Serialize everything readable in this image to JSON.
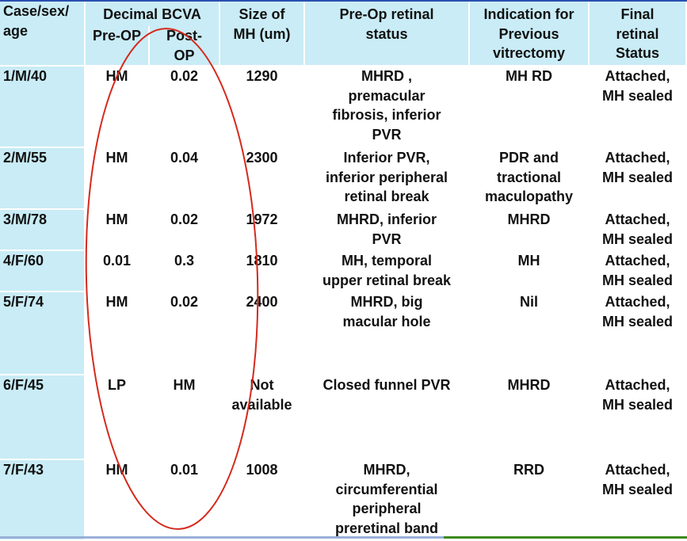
{
  "headers": {
    "case": [
      "Case/sex/",
      "age"
    ],
    "bcva_group": "Decimal BCVA",
    "pre_op": "Pre-OP",
    "post_op": [
      "Post-",
      "OP"
    ],
    "size": [
      "Size of",
      "MH (um)"
    ],
    "preop_status": [
      "Pre-Op retinal",
      "status"
    ],
    "indication": [
      "Indication for",
      "Previous",
      "vitrectomy"
    ],
    "final": [
      "Final",
      "retinal",
      "Status"
    ]
  },
  "rows": [
    {
      "case": "1/M/40",
      "pre": "HM",
      "post": "0.02",
      "size": [
        "1290"
      ],
      "status": [
        "MHRD ,",
        "premacular",
        "fibrosis, inferior",
        "PVR"
      ],
      "indication": [
        "MH RD"
      ],
      "final": [
        "Attached,",
        "MH sealed"
      ]
    },
    {
      "case": "2/M/55",
      "pre": "HM",
      "post": "0.04",
      "size": [
        "2300"
      ],
      "status": [
        "Inferior PVR,",
        "inferior peripheral",
        "retinal break"
      ],
      "indication": [
        "PDR and",
        "tractional",
        "maculopathy"
      ],
      "final": [
        "Attached,",
        "MH sealed"
      ]
    },
    {
      "case": "3/M/78",
      "pre": "HM",
      "post": "0.02",
      "size": [
        "1972"
      ],
      "status": [
        "MHRD, inferior",
        "PVR"
      ],
      "indication": [
        "MHRD"
      ],
      "final": [
        "Attached,",
        "MH sealed"
      ]
    },
    {
      "case": "4/F/60",
      "pre": "0.01",
      "post": "0.3",
      "size": [
        "1810"
      ],
      "status": [
        "MH, temporal",
        "upper retinal break"
      ],
      "indication": [
        "MH"
      ],
      "final": [
        "Attached,",
        "MH sealed"
      ]
    },
    {
      "case": "5/F/74",
      "pre": "HM",
      "post": "0.02",
      "size": [
        "2400"
      ],
      "status": [
        "MHRD, big",
        "macular hole"
      ],
      "indication": [
        "Nil"
      ],
      "final": [
        "Attached,",
        "MH sealed"
      ]
    },
    {
      "case": "6/F/45",
      "pre": "LP",
      "post": "HM",
      "size": [
        "Not",
        "available"
      ],
      "status": [
        "Closed funnel PVR"
      ],
      "indication": [
        "MHRD"
      ],
      "final": [
        "Attached,",
        "MH sealed"
      ]
    },
    {
      "case": "7/F/43",
      "pre": "HM",
      "post": "0.01",
      "size": [
        "1008"
      ],
      "status": [
        "MHRD,",
        "circumferential",
        "peripheral",
        "preretinal band"
      ],
      "indication": [
        "RRD"
      ],
      "final": [
        "Attached,",
        "MH sealed"
      ]
    }
  ],
  "colors": {
    "header_fill": "#c9ecf6",
    "first_col_fill": "#c9ecf6",
    "annotation_ellipse": "#d42a1c",
    "top_bar": "#2a4fb0",
    "bottom_bar": "#3d8a1e"
  },
  "annotation": {
    "shape": "ellipse",
    "encircles": "Decimal BCVA columns"
  }
}
